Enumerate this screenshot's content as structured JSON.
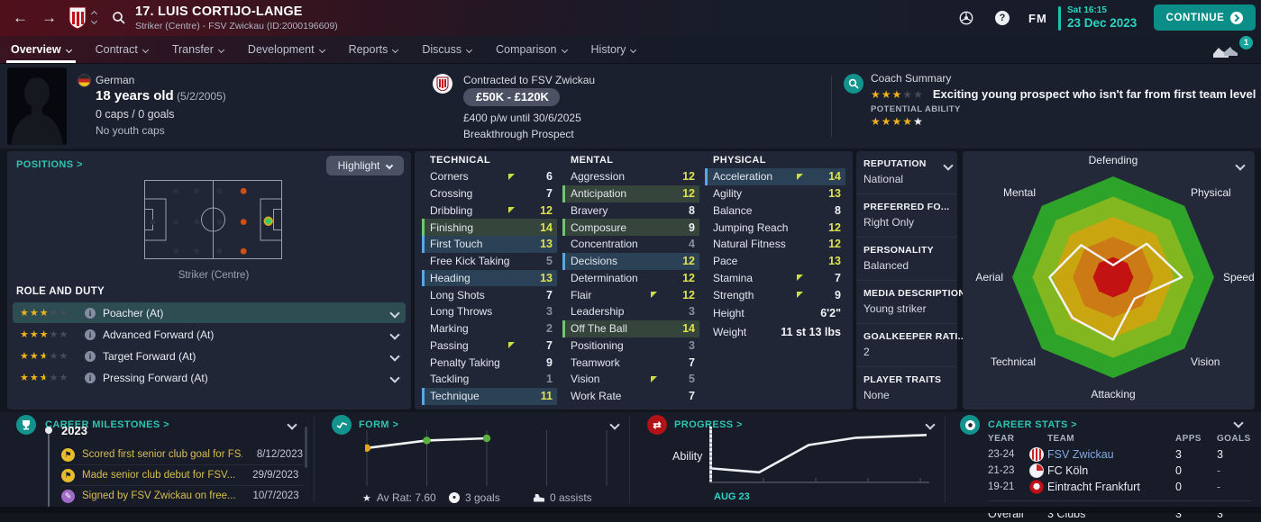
{
  "header": {
    "title": "17. LUIS CORTIJO-LANGE",
    "subtitle": "Striker (Centre) - FSV Zwickau (ID:2000196609)",
    "clock": "Sat 16:15",
    "date": "23 Dec 2023",
    "continue_label": "CONTINUE",
    "fm_logo": "FM",
    "notification_count": "1"
  },
  "nav": {
    "tabs": [
      {
        "label": "Overview",
        "active": true
      },
      {
        "label": "Contract"
      },
      {
        "label": "Transfer"
      },
      {
        "label": "Development"
      },
      {
        "label": "Reports"
      },
      {
        "label": "Discuss"
      },
      {
        "label": "Comparison"
      },
      {
        "label": "History"
      }
    ]
  },
  "profile": {
    "nationality": "German",
    "age_bold": "18 years old",
    "age_detail": "(5/2/2005)",
    "caps": "0 caps / 0 goals",
    "youth_caps": "No youth caps"
  },
  "contract": {
    "contracted_to": "Contracted to FSV Zwickau",
    "value_tag": "£50K - £120K",
    "wage": "£400 p/w until 30/6/2025",
    "status": "Breakthrough Prospect"
  },
  "coach_summary": {
    "label": "Coach Summary",
    "current_stars": {
      "gold": 3,
      "empty": 2
    },
    "text": "Exciting young prospect who isn't far from first team level",
    "potential_label": "POTENTIAL ABILITY",
    "potential_stars": {
      "gold": 4,
      "white": 1
    }
  },
  "positions": {
    "title": "POSITIONS >",
    "highlight_button": "Highlight",
    "caption": "Striker (Centre)",
    "pitch": {
      "faint_dots": [
        [
          0.23,
          0.14
        ],
        [
          0.23,
          0.53
        ],
        [
          0.23,
          0.9
        ],
        [
          0.38,
          0.14
        ],
        [
          0.38,
          0.53
        ],
        [
          0.38,
          0.9
        ],
        [
          0.545,
          0.14
        ],
        [
          0.545,
          0.53
        ],
        [
          0.545,
          0.9
        ],
        [
          0.06,
          0.53
        ]
      ],
      "orange_dots": [
        [
          0.72,
          0.14
        ],
        [
          0.72,
          0.53
        ],
        [
          0.72,
          0.9
        ]
      ],
      "green_dot": [
        0.9,
        0.52
      ]
    }
  },
  "role_and_duty": {
    "title": "ROLE AND DUTY",
    "roles": [
      {
        "stars": 3,
        "label": "Poacher (At)",
        "selected": true
      },
      {
        "stars": 3,
        "label": "Advanced Forward (At)"
      },
      {
        "stars": 2.5,
        "label": "Target Forward (At)"
      },
      {
        "stars": 2.5,
        "label": "Pressing Forward (At)"
      }
    ]
  },
  "attributes": {
    "technical": {
      "title": "TECHNICAL",
      "rows": [
        {
          "label": "Corners",
          "value": 6,
          "arrow": true
        },
        {
          "label": "Crossing",
          "value": 7
        },
        {
          "label": "Dribbling",
          "value": 12,
          "arrow": true
        },
        {
          "label": "Finishing",
          "value": 14,
          "highlight": "green"
        },
        {
          "label": "First Touch",
          "value": 13,
          "highlight": "blue"
        },
        {
          "label": "Free Kick Taking",
          "value": 5
        },
        {
          "label": "Heading",
          "value": 13,
          "highlight": "blue"
        },
        {
          "label": "Long Shots",
          "value": 7
        },
        {
          "label": "Long Throws",
          "value": 3
        },
        {
          "label": "Marking",
          "value": 2
        },
        {
          "label": "Passing",
          "value": 7,
          "arrow": true
        },
        {
          "label": "Penalty Taking",
          "value": 9
        },
        {
          "label": "Tackling",
          "value": 1
        },
        {
          "label": "Technique",
          "value": 11,
          "highlight": "blue"
        }
      ]
    },
    "mental": {
      "title": "MENTAL",
      "rows": [
        {
          "label": "Aggression",
          "value": 12
        },
        {
          "label": "Anticipation",
          "value": 12,
          "highlight": "green"
        },
        {
          "label": "Bravery",
          "value": 8
        },
        {
          "label": "Composure",
          "value": 9,
          "highlight": "green"
        },
        {
          "label": "Concentration",
          "value": 4
        },
        {
          "label": "Decisions",
          "value": 12,
          "highlight": "blue"
        },
        {
          "label": "Determination",
          "value": 12
        },
        {
          "label": "Flair",
          "value": 12,
          "arrow": true
        },
        {
          "label": "Leadership",
          "value": 3
        },
        {
          "label": "Off The Ball",
          "value": 14,
          "highlight": "green"
        },
        {
          "label": "Positioning",
          "value": 3
        },
        {
          "label": "Teamwork",
          "value": 7
        },
        {
          "label": "Vision",
          "value": 5,
          "arrow": true
        },
        {
          "label": "Work Rate",
          "value": 7
        }
      ]
    },
    "physical": {
      "title": "PHYSICAL",
      "rows": [
        {
          "label": "Acceleration",
          "value": 14,
          "arrow": true,
          "highlight": "blue"
        },
        {
          "label": "Agility",
          "value": 13
        },
        {
          "label": "Balance",
          "value": 8
        },
        {
          "label": "Jumping Reach",
          "value": 12
        },
        {
          "label": "Natural Fitness",
          "value": 12
        },
        {
          "label": "Pace",
          "value": 13
        },
        {
          "label": "Stamina",
          "value": 7,
          "arrow": true
        },
        {
          "label": "Strength",
          "value": 9,
          "arrow": true
        },
        {
          "label": "Height",
          "value": "6'2\"",
          "plain": true
        },
        {
          "label": "Weight",
          "value": "11 st 13 lbs",
          "plain": true
        }
      ]
    }
  },
  "details": {
    "sections": [
      {
        "heading": "REPUTATION",
        "value": "National",
        "chevron": true
      },
      {
        "heading": "PREFERRED FO...",
        "value": "Right Only"
      },
      {
        "heading": "PERSONALITY",
        "value": "Balanced"
      },
      {
        "heading": "MEDIA DESCRIPTION",
        "value": "Young striker"
      },
      {
        "heading": "GOALKEEPER RATI...",
        "value": "2"
      },
      {
        "heading": "PLAYER TRAITS",
        "value": "None"
      }
    ]
  },
  "milestones": {
    "title": "CAREER MILESTONES >",
    "year": "2023",
    "items": [
      {
        "icon": "flag-icon",
        "text": "Scored first senior club goal for FS...",
        "date": "8/12/2023"
      },
      {
        "icon": "flag-icon",
        "text": "Made senior club debut for FSV...",
        "date": "29/9/2023"
      },
      {
        "icon": "pen-icon",
        "text": "Signed by FSV Zwickau on free...",
        "date": "10/7/2023"
      }
    ]
  },
  "form_panel": {
    "title": "FORM >",
    "avg_rating": "Av Rat: 7.60",
    "goals": "3 goals",
    "assists": "0 assists"
  },
  "progress_panel": {
    "title": "PROGRESS >",
    "ylabel": "Ability",
    "xlabel": "AUG 23"
  },
  "career_stats": {
    "title": "CAREER STATS >",
    "columns": [
      "YEAR",
      "TEAM",
      "APPS",
      "GOALS"
    ],
    "rows": [
      {
        "year": "23-24",
        "team": "FSV Zwickau",
        "apps": "3",
        "goals": "3",
        "crest": "fsv-zwickau",
        "link": true
      },
      {
        "year": "21-23",
        "team": "FC Köln",
        "apps": "0",
        "goals": "-",
        "crest": "fc-koln"
      },
      {
        "year": "19-21",
        "team": "Eintracht Frankfurt",
        "apps": "0",
        "goals": "-",
        "crest": "eintracht-frankfurt"
      }
    ],
    "overall": {
      "label": "Overall",
      "team": "3 Clubs",
      "apps": "3",
      "goals": "3"
    }
  },
  "chart_data": [
    {
      "id": "radar",
      "type": "radar",
      "axes": [
        "Defending",
        "Physical",
        "Speed",
        "Vision",
        "Attacking",
        "Technical",
        "Aerial",
        "Mental"
      ],
      "values": [
        0.12,
        0.47,
        0.68,
        0.3,
        0.62,
        0.57,
        0.63,
        0.45
      ],
      "band_colors": [
        "#2ea32a",
        "#83b71f",
        "#c9a610",
        "#cc7a15",
        "#c31212"
      ],
      "line_color": "#f2f4f7"
    },
    {
      "id": "form",
      "type": "line",
      "gridlines": 5,
      "points": [
        {
          "x": 0,
          "y": 0.33,
          "color": "#dfa61d"
        },
        {
          "x": 1,
          "y": 0.19,
          "color": "#58b33c"
        },
        {
          "x": 2,
          "y": 0.15,
          "color": "#58b33c"
        }
      ]
    },
    {
      "id": "progress",
      "type": "line",
      "ylabel": "Ability",
      "xlabel": "AUG 23",
      "path": [
        [
          0,
          0.75
        ],
        [
          0.22,
          0.82
        ],
        [
          0.45,
          0.33
        ],
        [
          0.67,
          0.2
        ],
        [
          1,
          0.15
        ]
      ]
    }
  ],
  "colors": {
    "accent_teal": "#16b0a6",
    "date_teal": "#2cd3c2",
    "attribute_high": "#dfe24f",
    "star_gold": "#eeb21c",
    "link_blue": "#84a9e2",
    "milestone_gold": "#d9bd51",
    "highlight_green": "#6fc86f",
    "highlight_blue": "#5aa7e6",
    "arrow_yellow": "#ccdf3e"
  }
}
